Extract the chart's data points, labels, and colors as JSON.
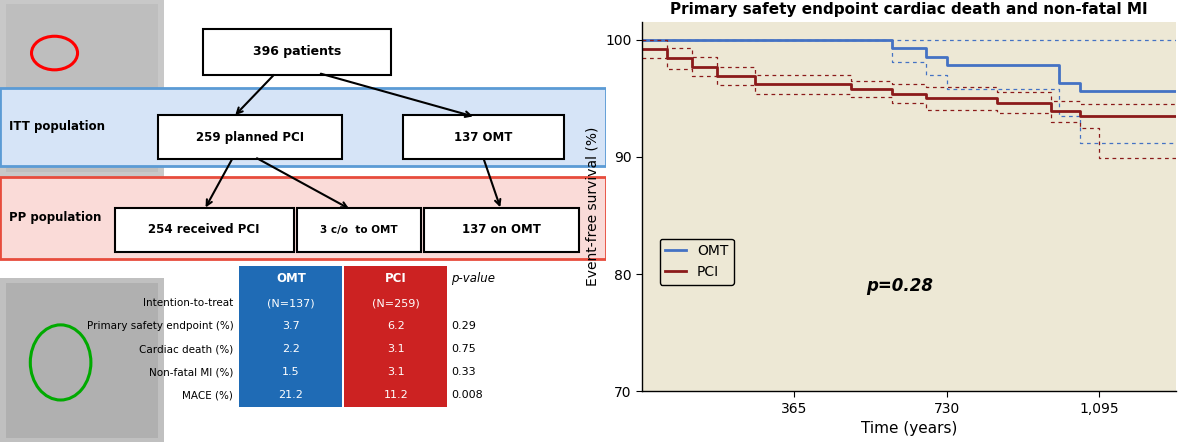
{
  "title": "Primary safety endpoint cardiac death and non-fatal MI",
  "ylabel": "Event-free survival (%)",
  "xlabel": "Time (years)",
  "ylim": [
    70,
    101.5
  ],
  "xlim": [
    0,
    1280
  ],
  "yticks": [
    70,
    80,
    90,
    100
  ],
  "xticks": [
    365,
    730,
    1095
  ],
  "xtick_labels": [
    "365",
    "730",
    "1,095"
  ],
  "p_value": "p=0.28",
  "bg_color": "#EDE8D5",
  "omt_color": "#4472C4",
  "pci_color": "#8B1A1A",
  "omt_data": [
    0,
    365,
    365,
    500,
    500,
    600,
    600,
    680,
    680,
    730,
    730,
    900,
    900,
    1000,
    1000,
    1050,
    1050,
    1095,
    1095,
    1280
  ],
  "omt_vals": [
    100,
    100,
    100,
    100,
    100,
    99.3,
    99.3,
    98.5,
    98.5,
    97.8,
    97.8,
    97.8,
    97.8,
    97.0,
    96.3,
    96.3,
    95.6,
    95.6,
    95.6,
    95.6
  ],
  "omt_upper": [
    100,
    100,
    100,
    100,
    100,
    100,
    100,
    100,
    100,
    100,
    100,
    100,
    100,
    100,
    100,
    100,
    100,
    100,
    100,
    100
  ],
  "omt_lower": [
    100,
    100,
    100,
    100,
    100,
    98.1,
    98.1,
    97.0,
    97.0,
    95.8,
    95.8,
    95.8,
    95.8,
    94.5,
    93.5,
    93.5,
    91.2,
    91.2,
    91.2,
    91.2
  ],
  "pci_data": [
    0,
    60,
    60,
    120,
    120,
    180,
    180,
    270,
    270,
    365,
    365,
    500,
    500,
    600,
    600,
    680,
    680,
    730,
    730,
    850,
    850,
    980,
    980,
    1050,
    1050,
    1095,
    1095,
    1280
  ],
  "pci_vals": [
    99.2,
    99.2,
    98.4,
    98.4,
    97.7,
    97.7,
    96.9,
    96.9,
    96.2,
    96.2,
    96.2,
    96.2,
    95.8,
    95.8,
    95.4,
    95.4,
    95.0,
    95.0,
    95.0,
    95.0,
    94.6,
    94.6,
    93.9,
    93.9,
    93.5,
    93.5,
    93.5,
    93.5
  ],
  "pci_upper": [
    100,
    100,
    99.3,
    99.3,
    98.5,
    98.5,
    97.7,
    97.7,
    97.0,
    97.0,
    97.0,
    97.0,
    96.5,
    96.5,
    96.2,
    96.2,
    96.0,
    96.0,
    96.0,
    96.0,
    95.5,
    95.5,
    94.8,
    94.8,
    94.5,
    94.5,
    94.5,
    94.5
  ],
  "pci_lower": [
    98.4,
    98.4,
    97.5,
    97.5,
    96.9,
    96.9,
    96.1,
    96.1,
    95.4,
    95.4,
    95.4,
    95.4,
    95.1,
    95.1,
    94.6,
    94.6,
    94.0,
    94.0,
    94.0,
    94.0,
    93.7,
    93.7,
    93.0,
    93.0,
    92.5,
    92.5,
    89.9,
    89.9
  ],
  "itt_bg": "#D6E4F7",
  "pp_bg": "#FADBD8",
  "table_omt_bg": "#1F6BB5",
  "table_pci_bg": "#CC2222",
  "rows": [
    {
      "label": "Intention-to-treat",
      "omt": "(N=137)",
      "pci": "(N=259)",
      "pval": ""
    },
    {
      "label": "Primary safety endpoint (%)",
      "omt": "3.7",
      "pci": "6.2",
      "pval": "0.29"
    },
    {
      "label": "Cardiac death (%)",
      "omt": "2.2",
      "pci": "3.1",
      "pval": "0.75"
    },
    {
      "label": "Non-fatal MI (%)",
      "omt": "1.5",
      "pci": "3.1",
      "pval": "0.33"
    },
    {
      "label": "MACE (%)",
      "omt": "21.2",
      "pci": "11.2",
      "pval": "0.008"
    }
  ]
}
